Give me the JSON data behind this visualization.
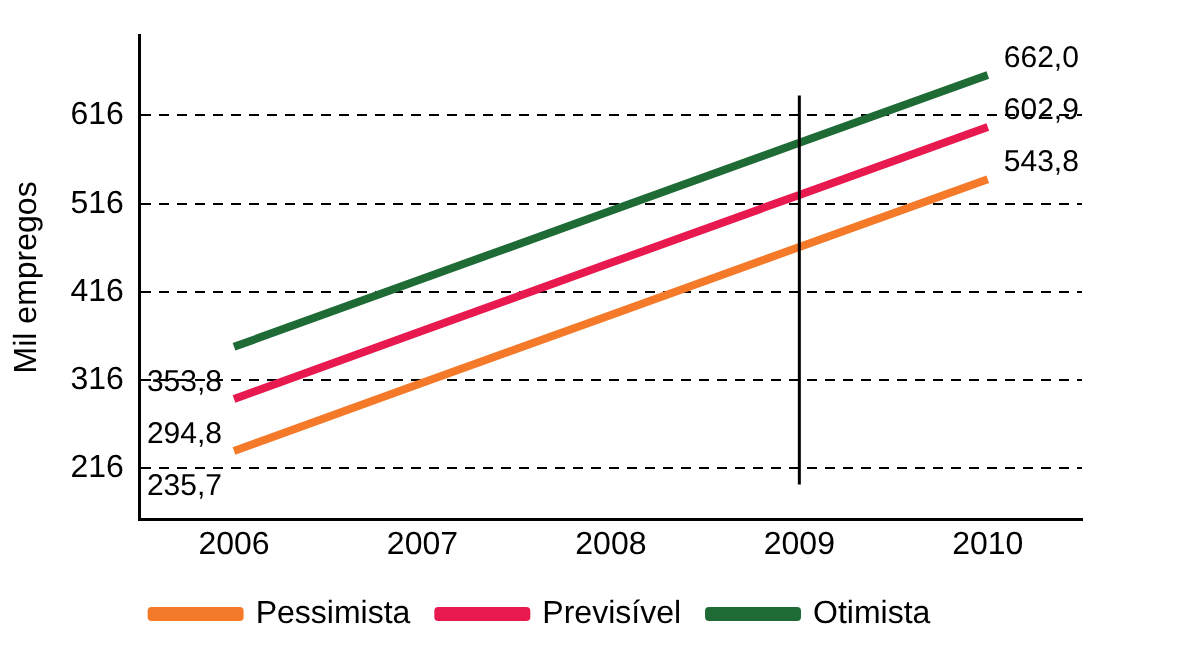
{
  "chart_data": {
    "type": "line",
    "ylabel": "Mil empregos",
    "categories": [
      "2006",
      "2007",
      "2008",
      "2009",
      "2010"
    ],
    "ylim": [
      158,
      707
    ],
    "yticks": [
      216,
      316,
      416,
      516,
      616
    ],
    "grid": "y",
    "line_style": "solid",
    "marker": "none",
    "legend": "bottom",
    "ref_lines": [
      {
        "axis": "x",
        "value": "2009",
        "color": "#000000",
        "line_style": "solid"
      }
    ],
    "series": [
      {
        "name": "Pessimista",
        "color": "#f47a2a",
        "values": [
          235.7,
          313,
          390,
          467,
          543.8
        ],
        "value_labels": [
          "235,7",
          null,
          null,
          null,
          "543,8"
        ]
      },
      {
        "name": "Previsível",
        "color": "#e8194f",
        "values": [
          294.8,
          372,
          449,
          526,
          602.9
        ],
        "value_labels": [
          "294,8",
          null,
          null,
          null,
          "602,9"
        ]
      },
      {
        "name": "Otimista",
        "color": "#1e6b35",
        "values": [
          353.8,
          431,
          508,
          585,
          662.0
        ],
        "value_labels": [
          "353,8",
          null,
          null,
          null,
          "662,0"
        ]
      }
    ]
  }
}
